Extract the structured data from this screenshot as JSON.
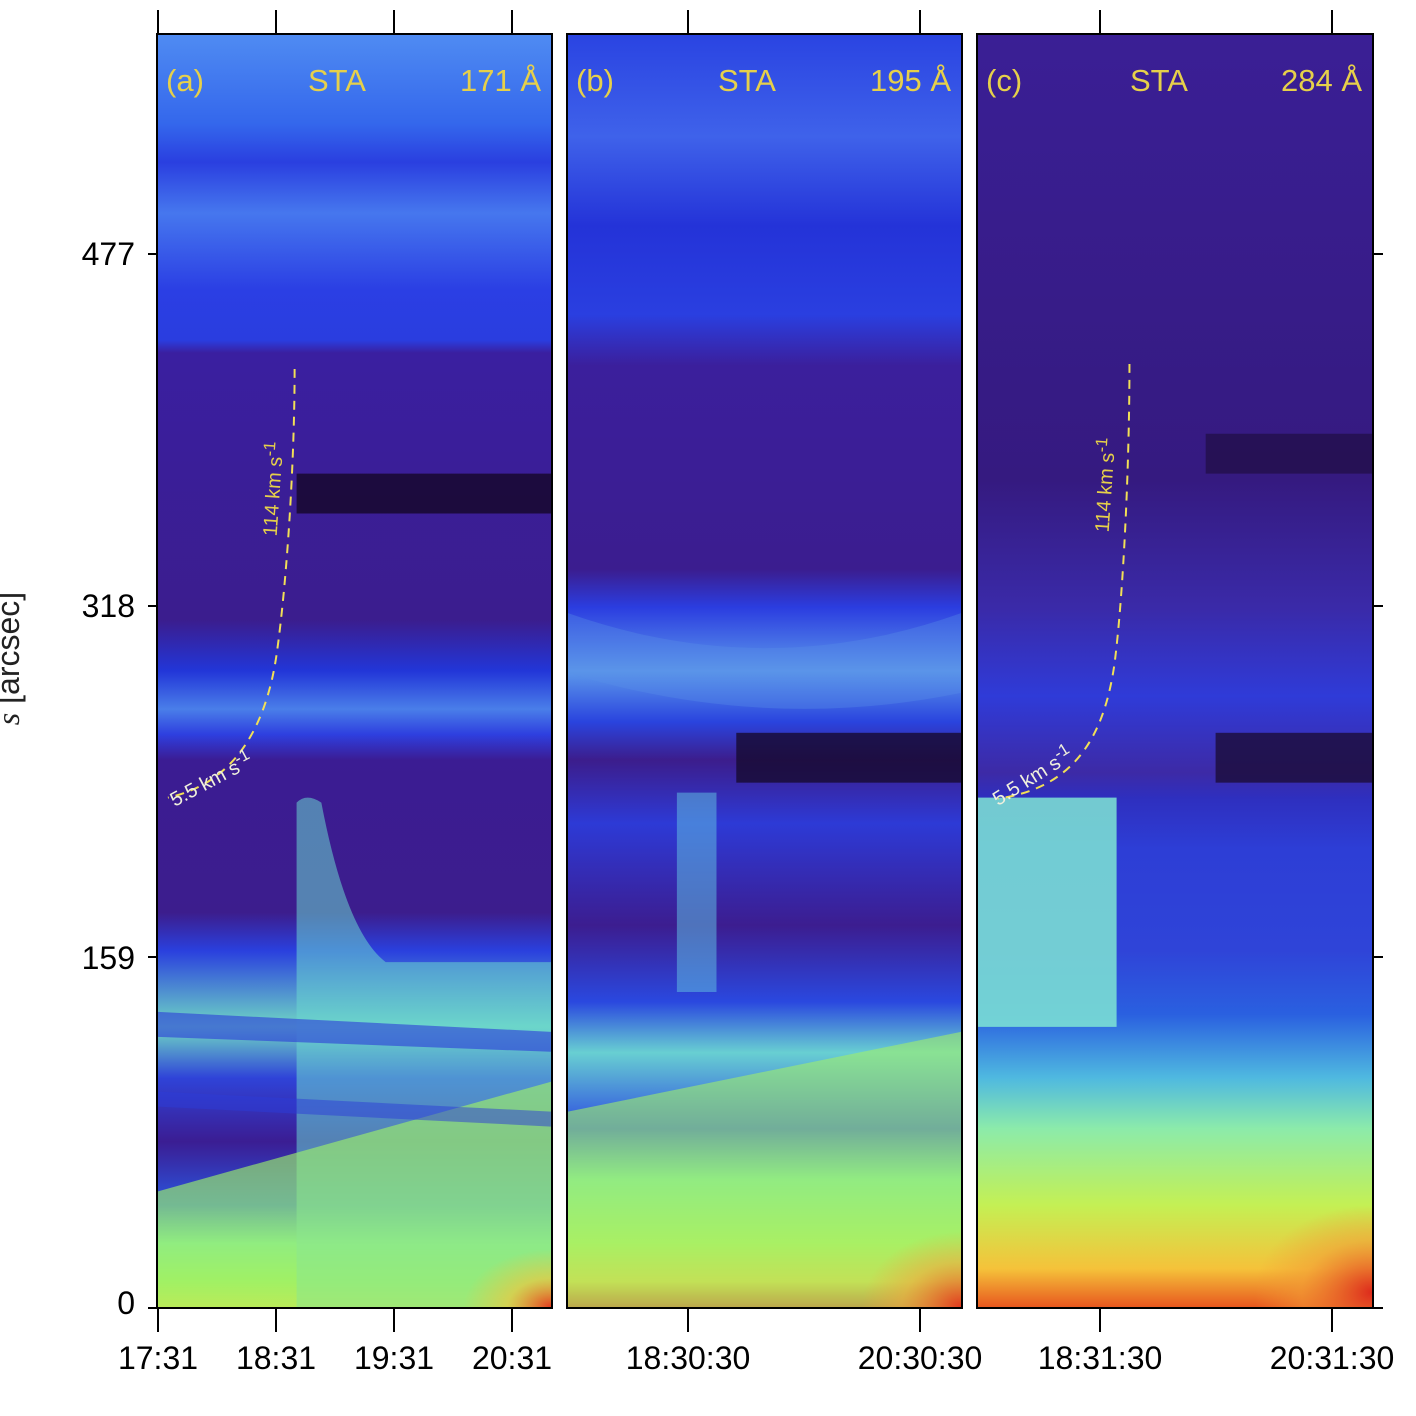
{
  "figure": {
    "ylabel_var": "s",
    "ylabel_unit": "[arcsec]",
    "y_ticks": [
      "477",
      "318",
      "159",
      "0"
    ],
    "colors": {
      "annotation_yellow": "#e6d04a",
      "annotation_white": "#f0f0dd"
    }
  },
  "panels": [
    {
      "tag": "(a)",
      "instrument": "STA",
      "wavelength": "171 Å",
      "x_ticks": [
        "17:31",
        "18:31",
        "19:31",
        "20:31"
      ],
      "annotations": {
        "fast": "114 km s",
        "slow": "5.5 km s",
        "exp": "-1"
      }
    },
    {
      "tag": "(b)",
      "instrument": "STA",
      "wavelength": "195 Å",
      "x_ticks": [
        "18:30:30",
        "20:30:30"
      ]
    },
    {
      "tag": "(c)",
      "instrument": "STA",
      "wavelength": "284 Å",
      "x_ticks": [
        "18:31:30",
        "20:31:30"
      ],
      "annotations": {
        "fast": "114 km s",
        "slow": "5.5 km s",
        "exp": "-1"
      }
    }
  ]
}
